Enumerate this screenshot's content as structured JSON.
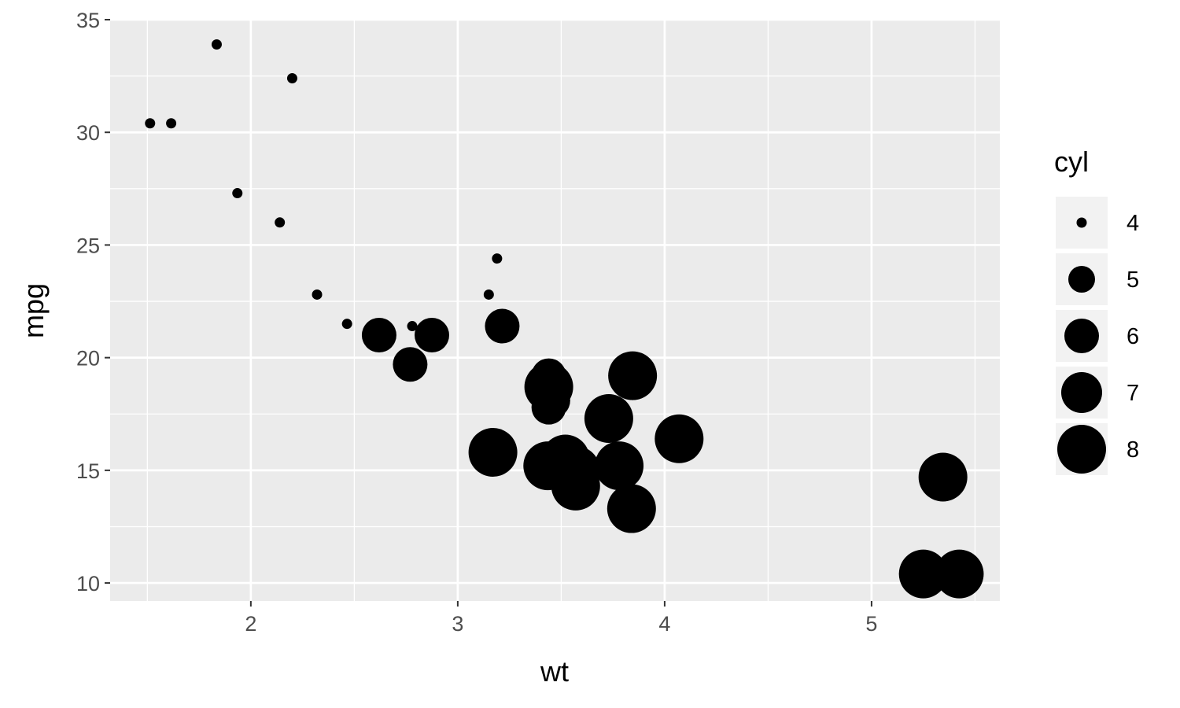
{
  "chart_data": {
    "type": "scatter",
    "xlabel": "wt",
    "ylabel": "mpg",
    "xlim": [
      1.32,
      5.62
    ],
    "ylim": [
      9.2,
      35.0
    ],
    "x_ticks": [
      2,
      3,
      4,
      5
    ],
    "y_ticks": [
      10,
      15,
      20,
      25,
      30,
      35
    ],
    "x_minor": [
      1.5,
      2.5,
      3.5,
      4.5,
      5.5
    ],
    "y_minor": [
      12.5,
      17.5,
      22.5,
      27.5,
      32.5
    ],
    "grid": true,
    "size_variable": "cyl",
    "legend": {
      "title": "cyl",
      "position": "right",
      "entries": [
        "4",
        "5",
        "6",
        "7",
        "8"
      ]
    },
    "points": [
      {
        "x": 2.62,
        "y": 21.0,
        "cyl": 6
      },
      {
        "x": 2.875,
        "y": 21.0,
        "cyl": 6
      },
      {
        "x": 2.32,
        "y": 22.8,
        "cyl": 4
      },
      {
        "x": 3.215,
        "y": 21.4,
        "cyl": 6
      },
      {
        "x": 3.44,
        "y": 18.7,
        "cyl": 8
      },
      {
        "x": 3.46,
        "y": 18.1,
        "cyl": 6
      },
      {
        "x": 3.57,
        "y": 14.3,
        "cyl": 8
      },
      {
        "x": 3.19,
        "y": 24.4,
        "cyl": 4
      },
      {
        "x": 3.15,
        "y": 22.8,
        "cyl": 4
      },
      {
        "x": 3.44,
        "y": 19.2,
        "cyl": 6
      },
      {
        "x": 3.44,
        "y": 17.8,
        "cyl": 6
      },
      {
        "x": 4.07,
        "y": 16.4,
        "cyl": 8
      },
      {
        "x": 3.73,
        "y": 17.3,
        "cyl": 8
      },
      {
        "x": 3.78,
        "y": 15.2,
        "cyl": 8
      },
      {
        "x": 5.25,
        "y": 10.4,
        "cyl": 8
      },
      {
        "x": 5.424,
        "y": 10.4,
        "cyl": 8
      },
      {
        "x": 5.345,
        "y": 14.7,
        "cyl": 8
      },
      {
        "x": 2.2,
        "y": 32.4,
        "cyl": 4
      },
      {
        "x": 1.615,
        "y": 30.4,
        "cyl": 4
      },
      {
        "x": 1.835,
        "y": 33.9,
        "cyl": 4
      },
      {
        "x": 2.465,
        "y": 21.5,
        "cyl": 4
      },
      {
        "x": 3.52,
        "y": 15.5,
        "cyl": 8
      },
      {
        "x": 3.435,
        "y": 15.2,
        "cyl": 8
      },
      {
        "x": 3.84,
        "y": 13.3,
        "cyl": 8
      },
      {
        "x": 3.845,
        "y": 19.2,
        "cyl": 8
      },
      {
        "x": 1.935,
        "y": 27.3,
        "cyl": 4
      },
      {
        "x": 2.14,
        "y": 26.0,
        "cyl": 4
      },
      {
        "x": 1.513,
        "y": 30.4,
        "cyl": 4
      },
      {
        "x": 3.17,
        "y": 15.8,
        "cyl": 8
      },
      {
        "x": 2.77,
        "y": 19.7,
        "cyl": 6
      },
      {
        "x": 3.57,
        "y": 15.0,
        "cyl": 8
      },
      {
        "x": 2.78,
        "y": 21.4,
        "cyl": 4
      }
    ]
  }
}
